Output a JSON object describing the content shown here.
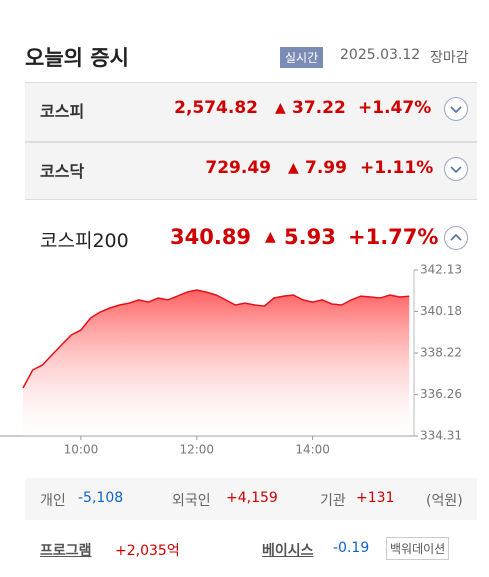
{
  "header": {
    "title": "오늘의 증시",
    "badge": "실시간",
    "date": "2025.03.12",
    "status": "장마감"
  },
  "indices": [
    {
      "name": "코스피",
      "value": "2,574.82",
      "change": "37.22",
      "change_pct": "+1.47%"
    },
    {
      "name": "코스닥",
      "value": "729.49",
      "change": "7.99",
      "change_pct": "+1.11%"
    }
  ],
  "featured": {
    "name": "코스피200",
    "value": "340.89",
    "change": "5.93",
    "change_pct": "+1.77%"
  },
  "chart_data": {
    "type": "area",
    "x": [
      "09:00",
      "09:10",
      "09:20",
      "09:30",
      "09:40",
      "09:50",
      "10:00",
      "10:10",
      "10:20",
      "10:30",
      "10:40",
      "10:50",
      "11:00",
      "11:10",
      "11:20",
      "11:30",
      "11:40",
      "11:50",
      "12:00",
      "12:10",
      "12:20",
      "12:30",
      "12:40",
      "12:50",
      "13:00",
      "13:10",
      "13:20",
      "13:30",
      "13:40",
      "13:50",
      "14:00",
      "14:10",
      "14:20",
      "14:30",
      "14:40",
      "14:50",
      "15:00",
      "15:10",
      "15:20",
      "15:30",
      "15:40"
    ],
    "series": [
      {
        "color": "#e8101a",
        "values": [
          336.57,
          337.42,
          337.65,
          338.13,
          338.6,
          339.07,
          339.3,
          339.87,
          340.15,
          340.34,
          340.48,
          340.57,
          340.72,
          340.62,
          340.81,
          340.72,
          340.9,
          341.09,
          341.19,
          341.09,
          340.95,
          340.72,
          340.48,
          340.57,
          340.48,
          340.43,
          340.81,
          340.9,
          340.95,
          340.72,
          340.62,
          340.72,
          340.53,
          340.48,
          340.72,
          340.9,
          340.86,
          340.81,
          340.95,
          340.86,
          340.89
        ]
      }
    ],
    "xlim": [
      "09:00",
      "15:45"
    ],
    "xticks": [
      "10:00",
      "12:00",
      "14:00"
    ],
    "ylim": [
      334.31,
      342.13
    ],
    "yticks": [
      334.31,
      336.26,
      338.22,
      340.18,
      342.13
    ]
  },
  "investors": {
    "items": [
      {
        "label": "개인",
        "value": "-5,108"
      },
      {
        "label": "외국인",
        "value": "+4,159"
      },
      {
        "label": "기관",
        "value": "+131"
      }
    ],
    "unit": "(억원)"
  },
  "program": {
    "label": "프로그램",
    "value": "+2,035",
    "unit": "억"
  },
  "basis": {
    "label": "베이시스",
    "value": "-0.19",
    "button": "백워데이션"
  }
}
